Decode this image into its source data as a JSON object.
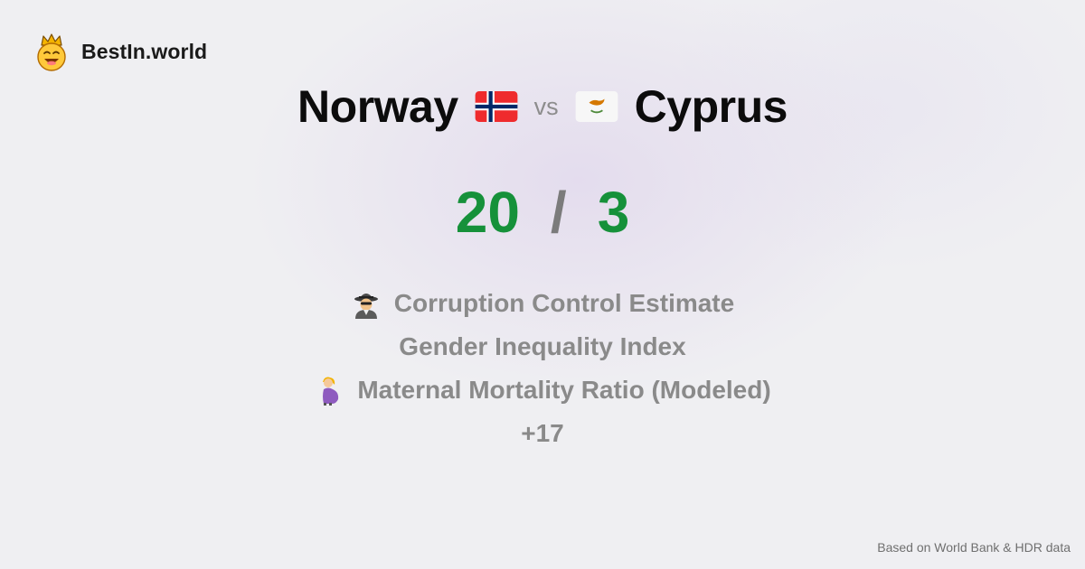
{
  "brand": {
    "name": "BestIn.world",
    "logo_icon": "crowned-smiley-icon"
  },
  "comparison": {
    "left_country": "Norway",
    "left_flag_icon": "norway-flag-icon",
    "vs_label": "vs",
    "right_country": "Cyprus",
    "right_flag_icon": "cyprus-flag-icon",
    "left_score": "20",
    "separator": "/",
    "right_score": "3"
  },
  "metrics": [
    {
      "label": "Corruption Control Estimate",
      "icon": "detective-icon"
    },
    {
      "label": "Gender Inequality Index",
      "icon": ""
    },
    {
      "label": "Maternal Mortality Ratio (Modeled)",
      "icon": "pregnant-woman-icon"
    }
  ],
  "more_label": "+17",
  "footer": {
    "source_note": "Based on World Bank & HDR data"
  },
  "colors": {
    "score": "#16913a",
    "muted": "#8a8a8a",
    "background": "#efeff2"
  }
}
